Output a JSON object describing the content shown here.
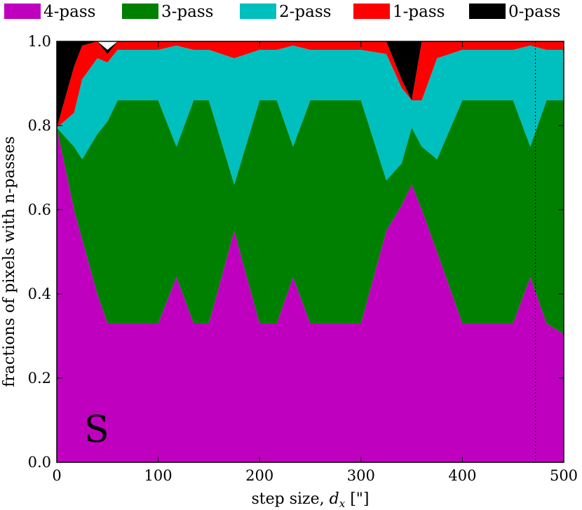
{
  "chart_data": {
    "type": "area",
    "stacked": true,
    "panel_label": "S",
    "xlabel": "step size, ",
    "xlabel_math": "d",
    "xlabel_math_sub": "x",
    "xlabel_unit": " [\"]",
    "ylabel": "fractions of pixels with n-passes",
    "xlim": [
      0,
      500
    ],
    "ylim": [
      0.0,
      1.0
    ],
    "x_ticks": [
      "0",
      "100",
      "200",
      "300",
      "400",
      "500"
    ],
    "y_ticks": [
      "0.0",
      "0.2",
      "0.4",
      "0.6",
      "0.8",
      "1.0"
    ],
    "grid": false,
    "legend_position": "top",
    "vertical_marker_x": 472,
    "x": [
      0,
      17,
      25,
      40,
      50,
      60,
      100,
      118,
      135,
      150,
      175,
      200,
      217,
      233,
      250,
      275,
      300,
      325,
      340,
      350,
      360,
      375,
      400,
      425,
      450,
      467,
      483,
      500
    ],
    "series": [
      {
        "name": "4-pass",
        "color": "#bf00bf",
        "values": [
          0.795,
          0.6,
          0.53,
          0.4,
          0.33,
          0.33,
          0.33,
          0.44,
          0.33,
          0.33,
          0.55,
          0.33,
          0.33,
          0.44,
          0.33,
          0.33,
          0.33,
          0.55,
          0.61,
          0.66,
          0.6,
          0.5,
          0.33,
          0.33,
          0.33,
          0.44,
          0.33,
          0.305
        ]
      },
      {
        "name": "3-pass",
        "color": "#008000",
        "values": [
          0.0,
          0.15,
          0.19,
          0.38,
          0.48,
          0.53,
          0.53,
          0.31,
          0.53,
          0.53,
          0.11,
          0.53,
          0.53,
          0.31,
          0.53,
          0.53,
          0.53,
          0.12,
          0.1,
          0.135,
          0.15,
          0.22,
          0.53,
          0.53,
          0.53,
          0.31,
          0.53,
          0.555
        ]
      },
      {
        "name": "2-pass",
        "color": "#00bfbf",
        "values": [
          0.0,
          0.08,
          0.19,
          0.18,
          0.14,
          0.12,
          0.12,
          0.24,
          0.12,
          0.12,
          0.3,
          0.12,
          0.12,
          0.24,
          0.12,
          0.12,
          0.12,
          0.3,
          0.18,
          0.065,
          0.11,
          0.24,
          0.12,
          0.12,
          0.12,
          0.24,
          0.12,
          0.12
        ]
      },
      {
        "name": "1-pass",
        "color": "#ff0000",
        "values": [
          0.0,
          0.11,
          0.08,
          0.04,
          0.02,
          0.02,
          0.02,
          0.01,
          0.02,
          0.02,
          0.04,
          0.02,
          0.02,
          0.01,
          0.02,
          0.02,
          0.02,
          0.03,
          0.02,
          0.0,
          0.14,
          0.04,
          0.02,
          0.02,
          0.02,
          0.01,
          0.02,
          0.02
        ]
      },
      {
        "name": "0-pass",
        "color": "#000000",
        "values": [
          0.205,
          0.06,
          0.01,
          0.0,
          0.01,
          0.0,
          0.0,
          0.0,
          0.0,
          0.0,
          0.0,
          0.0,
          0.0,
          0.0,
          0.0,
          0.0,
          0.0,
          0.0,
          0.09,
          0.14,
          0.0,
          0.0,
          0.0,
          0.0,
          0.0,
          0.0,
          0.0,
          0.0
        ]
      }
    ]
  }
}
